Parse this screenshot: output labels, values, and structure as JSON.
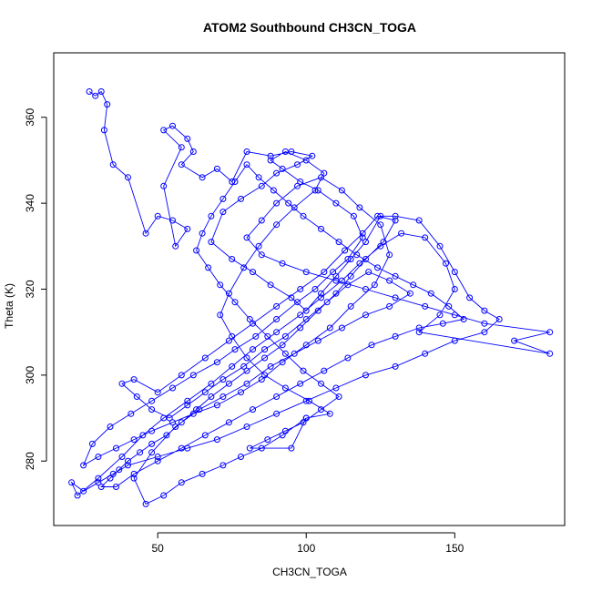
{
  "chart_data": {
    "type": "scatter",
    "title": "ATOM2 Southbound CH3CN_TOGA",
    "xlabel": "CH3CN_TOGA",
    "ylabel": "Theta (K)",
    "xlim": [
      15,
      187
    ],
    "ylim": [
      265,
      375
    ],
    "xticks": [
      50,
      100,
      150
    ],
    "yticks": [
      280,
      300,
      320,
      340,
      360
    ],
    "grid": false,
    "legend": "none",
    "style": "points connected by lines",
    "colors": {
      "series": "#0000ff",
      "axis": "#000000"
    },
    "series": [
      {
        "points": [
          [
            27,
            366
          ],
          [
            29,
            365
          ],
          [
            31,
            366
          ],
          [
            33,
            363
          ],
          [
            32,
            357
          ],
          [
            35,
            349
          ],
          [
            40,
            346
          ],
          [
            46,
            333
          ],
          [
            50,
            337
          ],
          [
            55,
            336
          ],
          [
            60,
            334
          ],
          [
            56,
            330
          ],
          [
            52,
            344
          ],
          [
            58,
            353
          ],
          [
            52,
            357
          ],
          [
            55,
            358
          ],
          [
            60,
            355
          ],
          [
            62,
            352
          ],
          [
            58,
            349
          ],
          [
            65,
            346
          ],
          [
            70,
            348
          ],
          [
            75,
            345
          ],
          [
            80,
            352
          ],
          [
            88,
            351
          ],
          [
            95,
            352
          ],
          [
            102,
            351
          ],
          [
            97,
            349
          ],
          [
            90,
            347
          ],
          [
            85,
            344
          ],
          [
            78,
            341
          ],
          [
            72,
            338
          ],
          [
            68,
            331
          ],
          [
            75,
            327
          ],
          [
            82,
            324
          ],
          [
            88,
            321
          ],
          [
            95,
            318
          ],
          [
            100,
            315
          ],
          [
            105,
            319
          ],
          [
            110,
            323
          ],
          [
            115,
            327
          ],
          [
            120,
            331
          ],
          [
            125,
            337
          ],
          [
            130,
            337
          ],
          [
            138,
            336
          ],
          [
            145,
            330
          ],
          [
            150,
            324
          ],
          [
            155,
            318
          ],
          [
            160,
            315
          ],
          [
            165,
            313
          ],
          [
            160,
            310
          ],
          [
            150,
            308
          ],
          [
            140,
            305
          ],
          [
            130,
            302
          ],
          [
            120,
            300
          ],
          [
            110,
            297
          ],
          [
            100,
            294
          ],
          [
            90,
            291
          ],
          [
            80,
            288
          ],
          [
            70,
            285
          ],
          [
            60,
            283
          ],
          [
            50,
            281
          ],
          [
            40,
            279
          ],
          [
            35,
            277
          ],
          [
            30,
            275
          ],
          [
            25,
            273
          ],
          [
            21,
            275
          ],
          [
            23,
            272
          ],
          [
            30,
            276
          ],
          [
            38,
            281
          ],
          [
            45,
            286
          ],
          [
            52,
            290
          ],
          [
            60,
            294
          ],
          [
            68,
            298
          ],
          [
            75,
            302
          ],
          [
            82,
            306
          ],
          [
            90,
            310
          ],
          [
            98,
            314
          ],
          [
            105,
            318
          ],
          [
            112,
            322
          ],
          [
            118,
            326
          ],
          [
            125,
            330
          ],
          [
            132,
            333
          ],
          [
            140,
            332
          ],
          [
            147,
            326
          ],
          [
            150,
            320
          ],
          [
            145,
            314
          ],
          [
            138,
            310
          ],
          [
            182,
            305
          ],
          [
            170,
            308
          ],
          [
            182,
            310
          ],
          [
            160,
            312
          ],
          [
            150,
            314
          ],
          [
            140,
            316
          ],
          [
            130,
            318
          ],
          [
            120,
            320
          ],
          [
            110,
            322
          ],
          [
            100,
            324
          ],
          [
            92,
            326
          ],
          [
            85,
            328
          ],
          [
            80,
            332
          ],
          [
            85,
            336
          ],
          [
            90,
            340
          ],
          [
            97,
            344
          ],
          [
            105,
            346
          ],
          [
            112,
            343
          ],
          [
            118,
            339
          ],
          [
            125,
            335
          ],
          [
            128,
            328
          ],
          [
            123,
            321
          ],
          [
            115,
            316
          ],
          [
            108,
            311
          ],
          [
            100,
            307
          ],
          [
            92,
            303
          ],
          [
            85,
            299
          ],
          [
            78,
            296
          ],
          [
            70,
            293
          ],
          [
            62,
            291
          ],
          [
            55,
            289
          ],
          [
            48,
            287
          ],
          [
            42,
            285
          ],
          [
            36,
            283
          ],
          [
            30,
            281
          ],
          [
            25,
            279
          ],
          [
            28,
            284
          ],
          [
            34,
            288
          ],
          [
            41,
            291
          ],
          [
            48,
            294
          ],
          [
            55,
            297
          ],
          [
            62,
            300
          ],
          [
            70,
            303
          ],
          [
            76,
            306
          ],
          [
            83,
            309
          ],
          [
            90,
            313
          ],
          [
            97,
            317
          ],
          [
            103,
            320
          ],
          [
            109,
            324
          ],
          [
            114,
            327
          ],
          [
            119,
            332
          ],
          [
            116,
            337
          ],
          [
            110,
            340
          ],
          [
            104,
            343
          ],
          [
            98,
            345
          ],
          [
            92,
            348
          ],
          [
            88,
            350
          ],
          [
            93,
            352
          ],
          [
            100,
            350
          ],
          [
            106,
            347
          ],
          [
            103,
            343
          ],
          [
            96,
            339
          ],
          [
            90,
            335
          ],
          [
            84,
            330
          ],
          [
            79,
            325
          ],
          [
            74,
            319
          ],
          [
            71,
            314
          ],
          [
            75,
            309
          ],
          [
            80,
            304
          ],
          [
            86,
            300
          ],
          [
            93,
            297
          ],
          [
            101,
            294
          ],
          [
            108,
            291
          ],
          [
            100,
            290
          ],
          [
            92,
            286
          ],
          [
            85,
            283
          ],
          [
            78,
            281
          ],
          [
            72,
            279
          ],
          [
            65,
            277
          ],
          [
            58,
            275
          ],
          [
            52,
            272
          ],
          [
            46,
            270
          ],
          [
            42,
            276
          ],
          [
            48,
            282
          ],
          [
            56,
            288
          ],
          [
            64,
            292
          ],
          [
            72,
            295
          ],
          [
            80,
            298
          ],
          [
            88,
            302
          ],
          [
            96,
            305
          ],
          [
            104,
            308
          ],
          [
            112,
            311
          ],
          [
            120,
            314
          ],
          [
            128,
            316
          ],
          [
            135,
            319
          ],
          [
            128,
            322
          ],
          [
            121,
            324
          ],
          [
            114,
            321
          ],
          [
            107,
            317
          ],
          [
            100,
            313
          ],
          [
            93,
            309
          ],
          [
            86,
            306
          ],
          [
            79,
            302
          ],
          [
            72,
            299
          ],
          [
            66,
            296
          ],
          [
            60,
            293
          ],
          [
            54,
            290
          ],
          [
            48,
            292
          ],
          [
            43,
            295
          ],
          [
            38,
            298
          ],
          [
            42,
            299
          ],
          [
            50,
            296
          ],
          [
            58,
            300
          ],
          [
            66,
            304
          ],
          [
            74,
            308
          ],
          [
            82,
            312
          ],
          [
            90,
            316
          ],
          [
            98,
            320
          ],
          [
            106,
            324
          ],
          [
            113,
            329
          ],
          [
            119,
            333
          ],
          [
            124,
            337
          ],
          [
            130,
            336
          ],
          [
            126,
            331
          ],
          [
            120,
            327
          ],
          [
            115,
            323
          ],
          [
            110,
            319
          ],
          [
            104,
            315
          ],
          [
            98,
            311
          ],
          [
            92,
            307
          ],
          [
            86,
            304
          ],
          [
            80,
            301
          ],
          [
            74,
            298
          ],
          [
            68,
            295
          ],
          [
            63,
            292
          ],
          [
            58,
            289
          ],
          [
            53,
            286
          ],
          [
            48,
            284
          ],
          [
            44,
            282
          ],
          [
            40,
            280
          ],
          [
            37,
            278
          ],
          [
            34,
            276
          ],
          [
            31,
            274
          ],
          [
            36,
            274
          ],
          [
            42,
            277
          ],
          [
            50,
            280
          ],
          [
            58,
            283
          ],
          [
            66,
            286
          ],
          [
            74,
            289
          ],
          [
            82,
            292
          ],
          [
            90,
            295
          ],
          [
            98,
            298
          ],
          [
            106,
            301
          ],
          [
            114,
            304
          ],
          [
            122,
            307
          ],
          [
            130,
            309
          ],
          [
            138,
            311
          ],
          [
            146,
            312
          ],
          [
            153,
            313
          ],
          [
            148,
            316
          ],
          [
            142,
            319
          ],
          [
            136,
            321
          ],
          [
            130,
            323
          ],
          [
            124,
            325
          ],
          [
            117,
            328
          ],
          [
            111,
            331
          ],
          [
            105,
            334
          ],
          [
            99,
            337
          ],
          [
            94,
            340
          ],
          [
            89,
            343
          ],
          [
            84,
            346
          ],
          [
            80,
            349
          ],
          [
            76,
            345
          ],
          [
            72,
            341
          ],
          [
            68,
            337
          ],
          [
            65,
            333
          ],
          [
            63,
            329
          ],
          [
            67,
            325
          ],
          [
            71,
            321
          ],
          [
            76,
            317
          ],
          [
            81,
            313
          ],
          [
            87,
            309
          ],
          [
            93,
            305
          ],
          [
            99,
            301
          ],
          [
            105,
            298
          ],
          [
            111,
            295
          ],
          [
            105,
            292
          ],
          [
            99,
            289
          ],
          [
            93,
            287
          ],
          [
            87,
            285
          ],
          [
            81,
            283
          ],
          [
            95,
            283
          ],
          [
            100,
            290
          ]
        ]
      }
    ]
  }
}
